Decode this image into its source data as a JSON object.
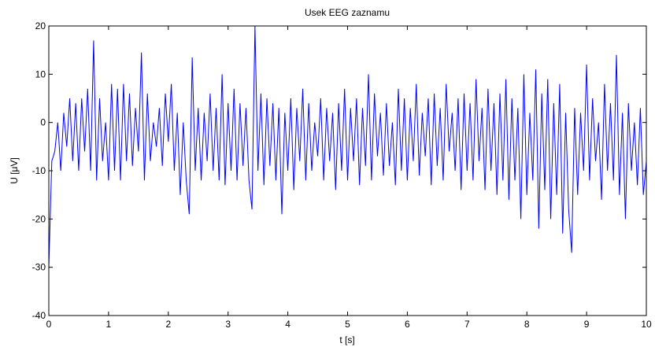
{
  "chart_data": {
    "type": "line",
    "title": "Usek EEG zaznamu",
    "xlabel": "t [s]",
    "ylabel": "U [μV]",
    "x": [
      0,
      0.05,
      0.1,
      0.15,
      0.2,
      0.25,
      0.3,
      0.35,
      0.4,
      0.45,
      0.5,
      0.55,
      0.6,
      0.65,
      0.7,
      0.75,
      0.8,
      0.85,
      0.9,
      0.95,
      1,
      1.05,
      1.1,
      1.15,
      1.2,
      1.25,
      1.3,
      1.35,
      1.4,
      1.45,
      1.5,
      1.55,
      1.6,
      1.65,
      1.7,
      1.75,
      1.8,
      1.85,
      1.9,
      1.95,
      2,
      2.05,
      2.1,
      2.15,
      2.2,
      2.25,
      2.3,
      2.35,
      2.4,
      2.45,
      2.5,
      2.55,
      2.6,
      2.65,
      2.7,
      2.75,
      2.8,
      2.85,
      2.9,
      2.95,
      3,
      3.05,
      3.1,
      3.15,
      3.2,
      3.25,
      3.3,
      3.35,
      3.4,
      3.45,
      3.5,
      3.55,
      3.6,
      3.65,
      3.7,
      3.75,
      3.8,
      3.85,
      3.9,
      3.95,
      4,
      4.05,
      4.1,
      4.15,
      4.2,
      4.25,
      4.3,
      4.35,
      4.4,
      4.45,
      4.5,
      4.55,
      4.6,
      4.65,
      4.7,
      4.75,
      4.8,
      4.85,
      4.9,
      4.95,
      5,
      5.05,
      5.1,
      5.15,
      5.2,
      5.25,
      5.3,
      5.35,
      5.4,
      5.45,
      5.5,
      5.55,
      5.6,
      5.65,
      5.7,
      5.75,
      5.8,
      5.85,
      5.9,
      5.95,
      6,
      6.05,
      6.1,
      6.15,
      6.2,
      6.25,
      6.3,
      6.35,
      6.4,
      6.45,
      6.5,
      6.55,
      6.6,
      6.65,
      6.7,
      6.75,
      6.8,
      6.85,
      6.9,
      6.95,
      7,
      7.05,
      7.1,
      7.15,
      7.2,
      7.25,
      7.3,
      7.35,
      7.4,
      7.45,
      7.5,
      7.55,
      7.6,
      7.65,
      7.7,
      7.75,
      7.8,
      7.85,
      7.9,
      7.95,
      8,
      8.05,
      8.1,
      8.15,
      8.2,
      8.25,
      8.3,
      8.35,
      8.4,
      8.45,
      8.5,
      8.55,
      8.6,
      8.65,
      8.7,
      8.75,
      8.8,
      8.85,
      8.9,
      8.95,
      9,
      9.05,
      9.1,
      9.15,
      9.2,
      9.25,
      9.3,
      9.35,
      9.4,
      9.45,
      9.5,
      9.55,
      9.6,
      9.65,
      9.7,
      9.75,
      9.8,
      9.85,
      9.9,
      9.95,
      10
    ],
    "values": [
      -30,
      -8,
      -6,
      0,
      -10,
      2,
      -5,
      5,
      -8,
      4,
      -10,
      5,
      -6,
      7,
      -10,
      17,
      -12,
      5,
      -8,
      0,
      -12,
      8,
      -10,
      7,
      -12,
      8,
      -8,
      6,
      -9,
      3,
      -6,
      14.5,
      -12,
      6,
      -8,
      0,
      -5,
      3,
      -9,
      6,
      -4,
      8,
      -10,
      2,
      -15,
      0,
      -12,
      -19,
      13.5,
      -10,
      3,
      -12,
      2,
      -8,
      6,
      -10,
      3,
      -12,
      10,
      -13,
      4,
      -10,
      7,
      -12,
      4,
      -9,
      3,
      -12,
      -18,
      20,
      -10,
      6,
      -13,
      5,
      -9,
      4,
      -12,
      3,
      -19,
      2,
      -10,
      5,
      -14,
      3,
      -8,
      7,
      -12,
      4,
      -10,
      0,
      -7,
      5,
      -12,
      3,
      -8,
      2,
      -14,
      4,
      -10,
      7,
      -12,
      3,
      -8,
      5,
      -13,
      3,
      -9,
      10,
      -12,
      6,
      -7,
      2,
      -11,
      4,
      -9,
      0,
      -13,
      7,
      -10,
      5,
      -12,
      3,
      -8,
      8,
      -11,
      2,
      -7,
      5,
      -13,
      6,
      -9,
      3,
      -12,
      8,
      -6,
      2,
      -10,
      5,
      -14,
      6,
      -10,
      4,
      -12,
      9,
      -8,
      3,
      -14,
      7,
      -10,
      4,
      -15,
      6,
      -12,
      9,
      -16,
      5,
      -12,
      3,
      -20,
      10,
      -15,
      2,
      -12,
      11,
      -22,
      6,
      -14,
      9,
      -20,
      4,
      -15,
      8,
      -23,
      2,
      -18,
      -27,
      3,
      -15,
      2,
      -10,
      12,
      -12,
      5,
      -8,
      0,
      -16,
      8,
      -10,
      4,
      -12,
      14,
      -15,
      2,
      -20,
      4,
      -10,
      0,
      -13,
      3,
      -15,
      -8
    ],
    "color": "#0000ff",
    "xlim": [
      0,
      10
    ],
    "xticks": [
      0,
      1,
      2,
      3,
      4,
      5,
      6,
      7,
      8,
      9,
      10
    ],
    "ylim": [
      -40,
      20
    ],
    "yticks": [
      -40,
      -30,
      -20,
      -10,
      0,
      10,
      20
    ]
  }
}
